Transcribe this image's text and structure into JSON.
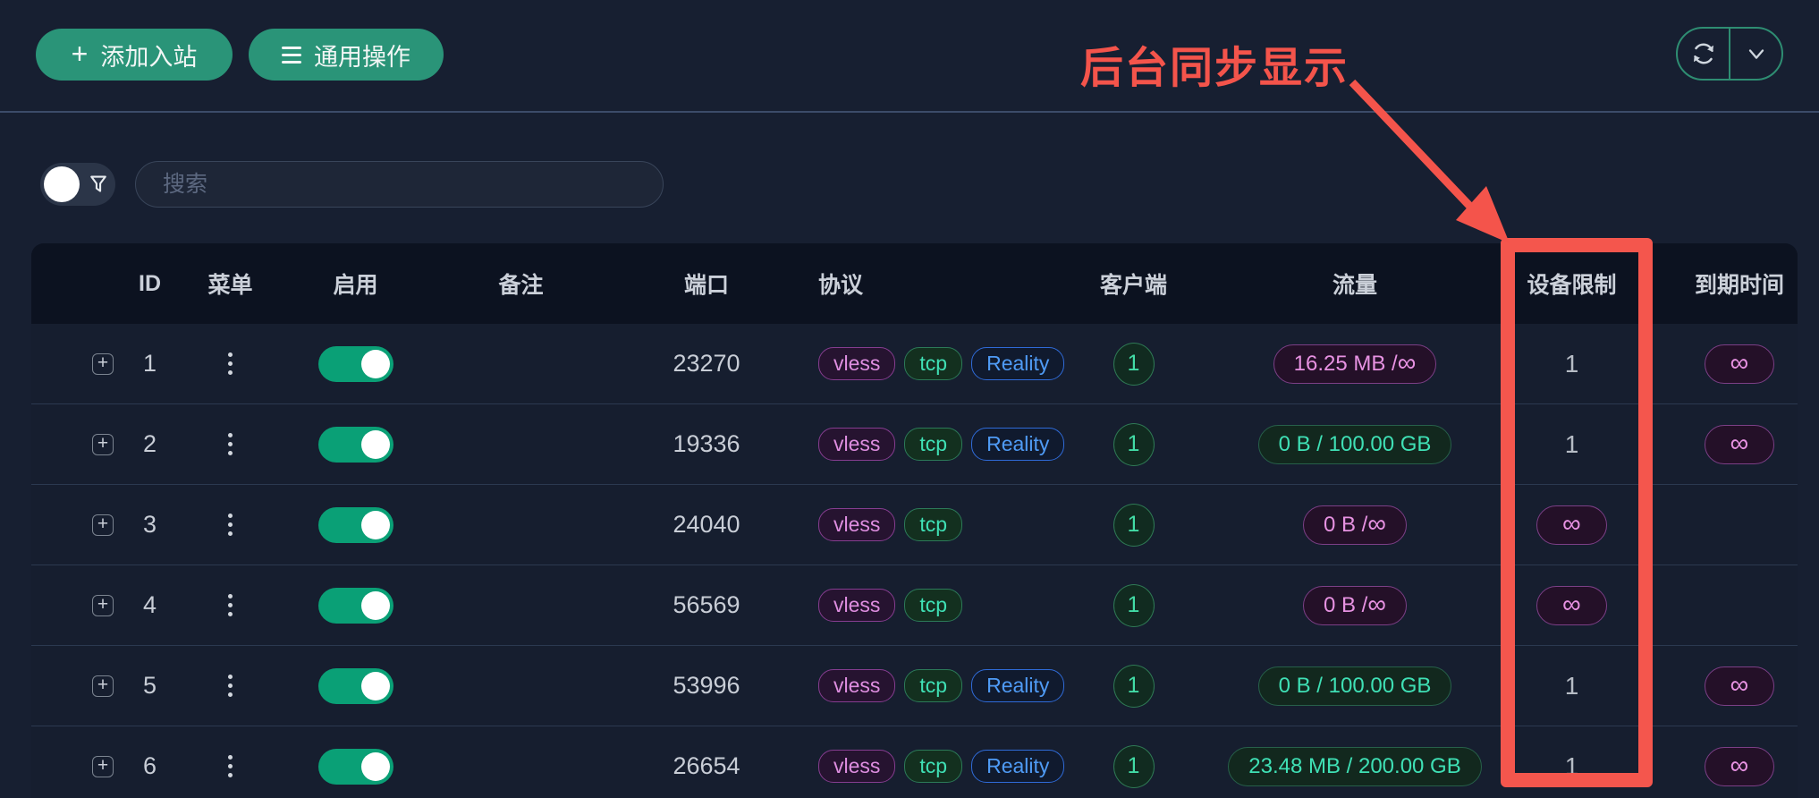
{
  "toolbar": {
    "add_button_label": "添加入站",
    "ops_button_label": "通用操作"
  },
  "filter": {
    "search_placeholder": "搜索"
  },
  "annotation": {
    "label": "后台同步显示"
  },
  "icons": {
    "add": "plus-icon",
    "ops": "menu-bars-icon",
    "refresh": "refresh-icon",
    "dropdown": "chevron-down-icon",
    "filter": "funnel-icon",
    "row_menu": "kebab-menu-icon",
    "row_expand": "plus-icon"
  },
  "colors": {
    "accent_green": "#2a9478",
    "toggle_on": "#0aa076",
    "annotation_red": "#f4544b",
    "tag_vless": "#de8ee0",
    "tag_tcp": "#3fe0b5",
    "tag_reality": "#4f9bf5",
    "badge_magenta": "#e792e2",
    "badge_green": "#3fe0b5",
    "page_background": "#171f31",
    "table_header_background": "#0c1220"
  },
  "table": {
    "columns": [
      "ID",
      "菜单",
      "启用",
      "备注",
      "端口",
      "协议",
      "客户端",
      "流量",
      "设备限制",
      "到期时间"
    ],
    "rows": [
      {
        "id": "1",
        "enabled": true,
        "remark": "",
        "port": "23270",
        "protocols": [
          "vless",
          "tcp",
          "Reality"
        ],
        "clients": "1",
        "traffic": {
          "text": "16.25 MB / ∞",
          "variant": "magenta"
        },
        "device_limit": {
          "text": "1",
          "variant": "text"
        },
        "expiry": {
          "text": "∞",
          "variant": "badge"
        }
      },
      {
        "id": "2",
        "enabled": true,
        "remark": "",
        "port": "19336",
        "protocols": [
          "vless",
          "tcp",
          "Reality"
        ],
        "clients": "1",
        "traffic": {
          "text": "0 B / 100.00 GB",
          "variant": "green"
        },
        "device_limit": {
          "text": "1",
          "variant": "text"
        },
        "expiry": {
          "text": "∞",
          "variant": "badge"
        }
      },
      {
        "id": "3",
        "enabled": true,
        "remark": "",
        "port": "24040",
        "protocols": [
          "vless",
          "tcp"
        ],
        "clients": "1",
        "traffic": {
          "text": "0 B / ∞",
          "variant": "magenta"
        },
        "device_limit": {
          "text": "∞",
          "variant": "badge"
        },
        "expiry": {
          "text": "",
          "variant": "empty"
        }
      },
      {
        "id": "4",
        "enabled": true,
        "remark": "",
        "port": "56569",
        "protocols": [
          "vless",
          "tcp"
        ],
        "clients": "1",
        "traffic": {
          "text": "0 B / ∞",
          "variant": "magenta"
        },
        "device_limit": {
          "text": "∞",
          "variant": "badge"
        },
        "expiry": {
          "text": "",
          "variant": "empty"
        }
      },
      {
        "id": "5",
        "enabled": true,
        "remark": "",
        "port": "53996",
        "protocols": [
          "vless",
          "tcp",
          "Reality"
        ],
        "clients": "1",
        "traffic": {
          "text": "0 B / 100.00 GB",
          "variant": "green"
        },
        "device_limit": {
          "text": "1",
          "variant": "text"
        },
        "expiry": {
          "text": "∞",
          "variant": "badge"
        }
      },
      {
        "id": "6",
        "enabled": true,
        "remark": "",
        "port": "26654",
        "protocols": [
          "vless",
          "tcp",
          "Reality"
        ],
        "clients": "1",
        "traffic": {
          "text": "23.48 MB / 200.00 GB",
          "variant": "green"
        },
        "device_limit": {
          "text": "1",
          "variant": "text"
        },
        "expiry": {
          "text": "∞",
          "variant": "badge"
        }
      }
    ]
  }
}
